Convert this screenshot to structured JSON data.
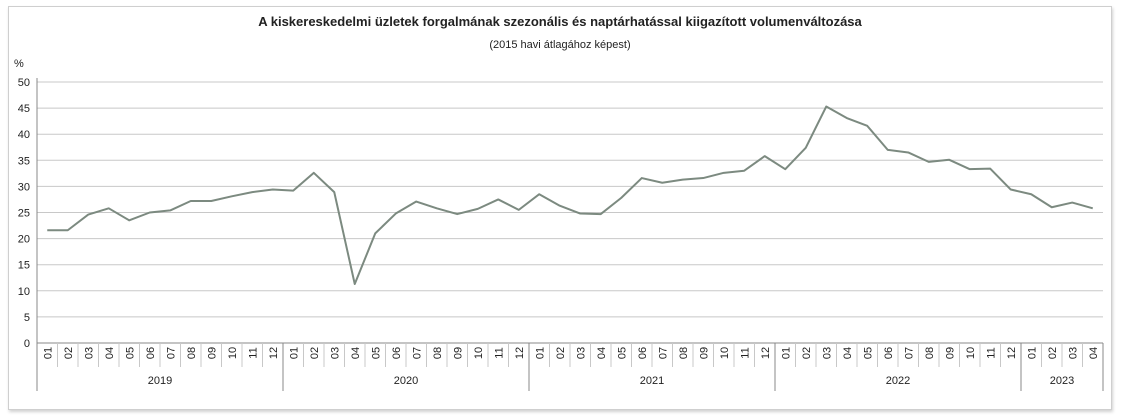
{
  "chart_data": {
    "type": "line",
    "title": "A kiskereskedelmi üzletek forgalmának szezonális és naptárhatással kiigazított volumenváltozása",
    "subtitle": "(2015 havi átlagához képest)",
    "ylabel": "%",
    "xlabel": "",
    "ylim": [
      0,
      50
    ],
    "yticks": [
      0,
      5,
      10,
      15,
      20,
      25,
      30,
      35,
      40,
      45,
      50
    ],
    "grid": true,
    "line_color": "#7c8a80",
    "year_groups": [
      {
        "year": "2019",
        "months": [
          "01",
          "02",
          "03",
          "04",
          "05",
          "06",
          "07",
          "08",
          "09",
          "10",
          "11",
          "12"
        ]
      },
      {
        "year": "2020",
        "months": [
          "01",
          "02",
          "03",
          "04",
          "05",
          "06",
          "07",
          "08",
          "09",
          "10",
          "11",
          "12"
        ]
      },
      {
        "year": "2021",
        "months": [
          "01",
          "02",
          "03",
          "04",
          "05",
          "06",
          "07",
          "08",
          "09",
          "10",
          "11",
          "12"
        ]
      },
      {
        "year": "2022",
        "months": [
          "01",
          "02",
          "03",
          "04",
          "05",
          "06",
          "07",
          "08",
          "09",
          "10",
          "11",
          "12"
        ]
      },
      {
        "year": "2023",
        "months": [
          "01",
          "02",
          "03",
          "04"
        ]
      }
    ],
    "series": [
      {
        "values": [
          21.6,
          21.6,
          24.6,
          25.8,
          23.5,
          25.0,
          25.4,
          27.2,
          27.2,
          28.1,
          28.9,
          29.4,
          29.2,
          32.6,
          28.9,
          11.3,
          21.0,
          24.8,
          27.1,
          25.8,
          24.7,
          25.7,
          27.5,
          25.5,
          28.5,
          26.3,
          24.8,
          24.7,
          27.8,
          31.6,
          30.7,
          31.3,
          31.6,
          32.6,
          33.0,
          35.8,
          33.3,
          37.4,
          45.3,
          43.1,
          41.6,
          37.0,
          36.5,
          34.7,
          35.1,
          33.3,
          33.4,
          29.4,
          28.5,
          26.0,
          26.9,
          25.8
        ]
      }
    ]
  }
}
